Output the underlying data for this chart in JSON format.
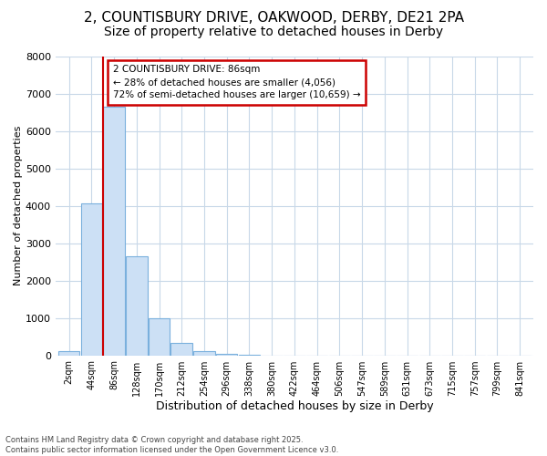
{
  "title_line1": "2, COUNTISBURY DRIVE, OAKWOOD, DERBY, DE21 2PA",
  "title_line2": "Size of property relative to detached houses in Derby",
  "xlabel": "Distribution of detached houses by size in Derby",
  "ylabel": "Number of detached properties",
  "bar_labels": [
    "2sqm",
    "44sqm",
    "86sqm",
    "128sqm",
    "170sqm",
    "212sqm",
    "254sqm",
    "296sqm",
    "338sqm",
    "380sqm",
    "422sqm",
    "464sqm",
    "506sqm",
    "547sqm",
    "589sqm",
    "631sqm",
    "673sqm",
    "715sqm",
    "757sqm",
    "799sqm",
    "841sqm"
  ],
  "bar_values": [
    100,
    4050,
    6650,
    2650,
    1000,
    340,
    100,
    50,
    5,
    2,
    1,
    0,
    0,
    0,
    0,
    0,
    0,
    0,
    0,
    0,
    0
  ],
  "bar_color": "#cce0f5",
  "bar_edge_color": "#7ab0dd",
  "red_line_index": 2,
  "red_line_color": "#cc0000",
  "annotation_line1": "2 COUNTISBURY DRIVE: 86sqm",
  "annotation_line2": "← 28% of detached houses are smaller (4,056)",
  "annotation_line3": "72% of semi-detached houses are larger (10,659) →",
  "annotation_box_facecolor": "#ffffff",
  "annotation_box_edgecolor": "#cc0000",
  "ylim_max": 8000,
  "yticks": [
    0,
    1000,
    2000,
    3000,
    4000,
    5000,
    6000,
    7000,
    8000
  ],
  "footer_line1": "Contains HM Land Registry data © Crown copyright and database right 2025.",
  "footer_line2": "Contains public sector information licensed under the Open Government Licence v3.0.",
  "bg_color": "#ffffff",
  "grid_color": "#c8d8e8",
  "title_fontsize": 11,
  "subtitle_fontsize": 10
}
